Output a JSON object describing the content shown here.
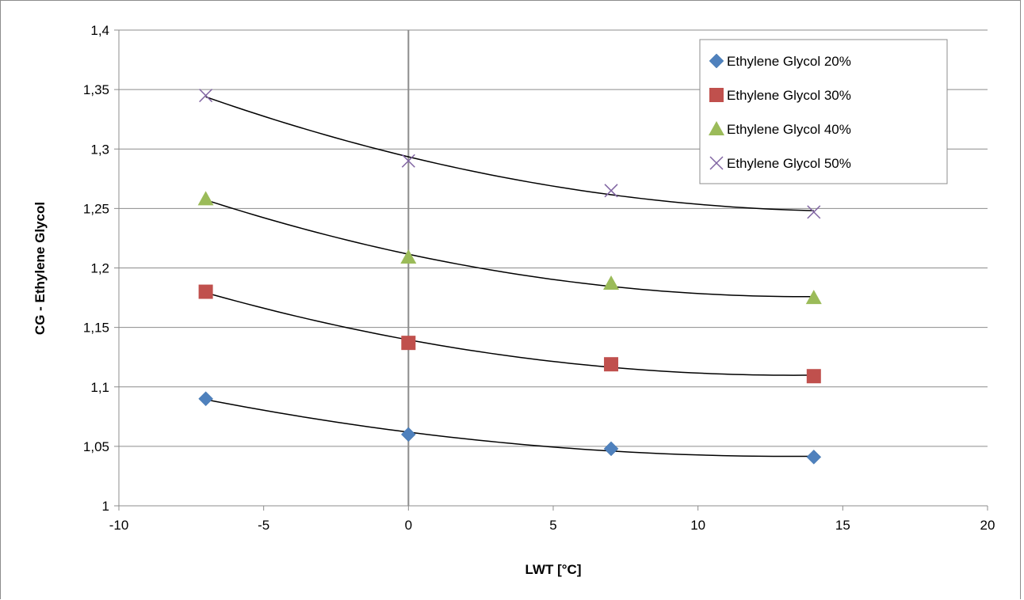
{
  "chart_data": {
    "type": "scatter",
    "title": "",
    "xlabel": "LWT [°C]",
    "ylabel": "CG - Ethylene Glycol",
    "xlim": [
      -10,
      20
    ],
    "ylim": [
      1,
      1.4
    ],
    "x_ticks": [
      -10,
      -5,
      0,
      5,
      10,
      15,
      20
    ],
    "y_ticks": [
      1,
      1.05,
      1.1,
      1.15,
      1.2,
      1.25,
      1.3,
      1.35,
      1.4
    ],
    "x_tick_labels": [
      "-10",
      "-5",
      "0",
      "5",
      "10",
      "15",
      "20"
    ],
    "y_tick_labels": [
      "1",
      "1,05",
      "1,1",
      "1,15",
      "1,2",
      "1,25",
      "1,3",
      "1,35",
      "1,4"
    ],
    "grid": "horizontal",
    "legend_position": "top-right",
    "x": [
      -7,
      0,
      7,
      14
    ],
    "series": [
      {
        "name": "Ethylene Glycol 20%",
        "marker": "diamond",
        "color": "#4F81BD",
        "values": [
          1.09,
          1.06,
          1.048,
          1.041
        ]
      },
      {
        "name": "Ethylene Glycol 30%",
        "marker": "square",
        "color": "#C0504D",
        "values": [
          1.18,
          1.137,
          1.119,
          1.109
        ]
      },
      {
        "name": "Ethylene Glycol 40%",
        "marker": "triangle",
        "color": "#9BBB59",
        "values": [
          1.258,
          1.209,
          1.187,
          1.175
        ]
      },
      {
        "name": "Ethylene Glycol 50%",
        "marker": "x",
        "color": "#8064A2",
        "values": [
          1.345,
          1.29,
          1.265,
          1.247
        ]
      }
    ],
    "trendline_color": "#000000"
  }
}
